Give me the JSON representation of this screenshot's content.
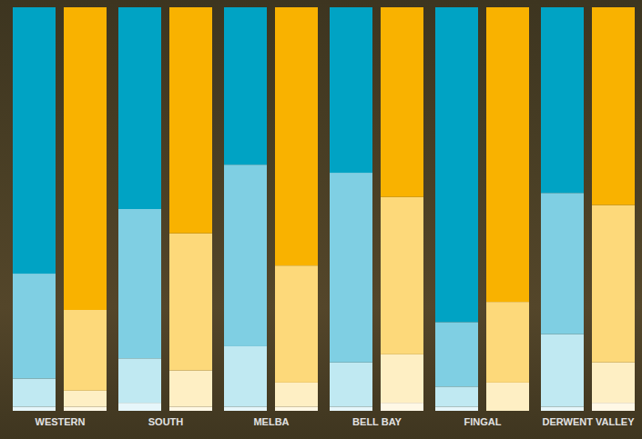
{
  "chart_data": {
    "type": "bar",
    "stacked": true,
    "tick_labels": "x",
    "categories": [
      "WESTERN",
      "SOUTH",
      "MELBA",
      "BELL BAY",
      "FINGAL",
      "DERWENT VALLEY"
    ],
    "ylim": [
      0,
      100
    ],
    "yticks": [],
    "groups": [
      {
        "series": [
          {
            "color": "#e6f6fa",
            "values": [
              1,
              2,
              1,
              1,
              1,
              1
            ]
          },
          {
            "color": "#c0e9f2",
            "values": [
              7,
              11,
              15,
              11,
              5,
              18
            ]
          },
          {
            "color": "#7fcfe3",
            "values": [
              26,
              37,
              45,
              47,
              16,
              35
            ]
          },
          {
            "color": "#00a3c4",
            "values": [
              66,
              50,
              39,
              41,
              78,
              46
            ]
          }
        ]
      },
      {
        "series": [
          {
            "color": "#fff8e6",
            "values": [
              1,
              1,
              1,
              2,
              0,
              2
            ]
          },
          {
            "color": "#feefc4",
            "values": [
              4,
              9,
              6,
              12,
              7,
              10
            ]
          },
          {
            "color": "#fdd97a",
            "values": [
              20,
              34,
              29,
              39,
              20,
              39
            ]
          },
          {
            "color": "#f9b200",
            "values": [
              75,
              56,
              64,
              47,
              73,
              49
            ]
          }
        ]
      }
    ]
  }
}
